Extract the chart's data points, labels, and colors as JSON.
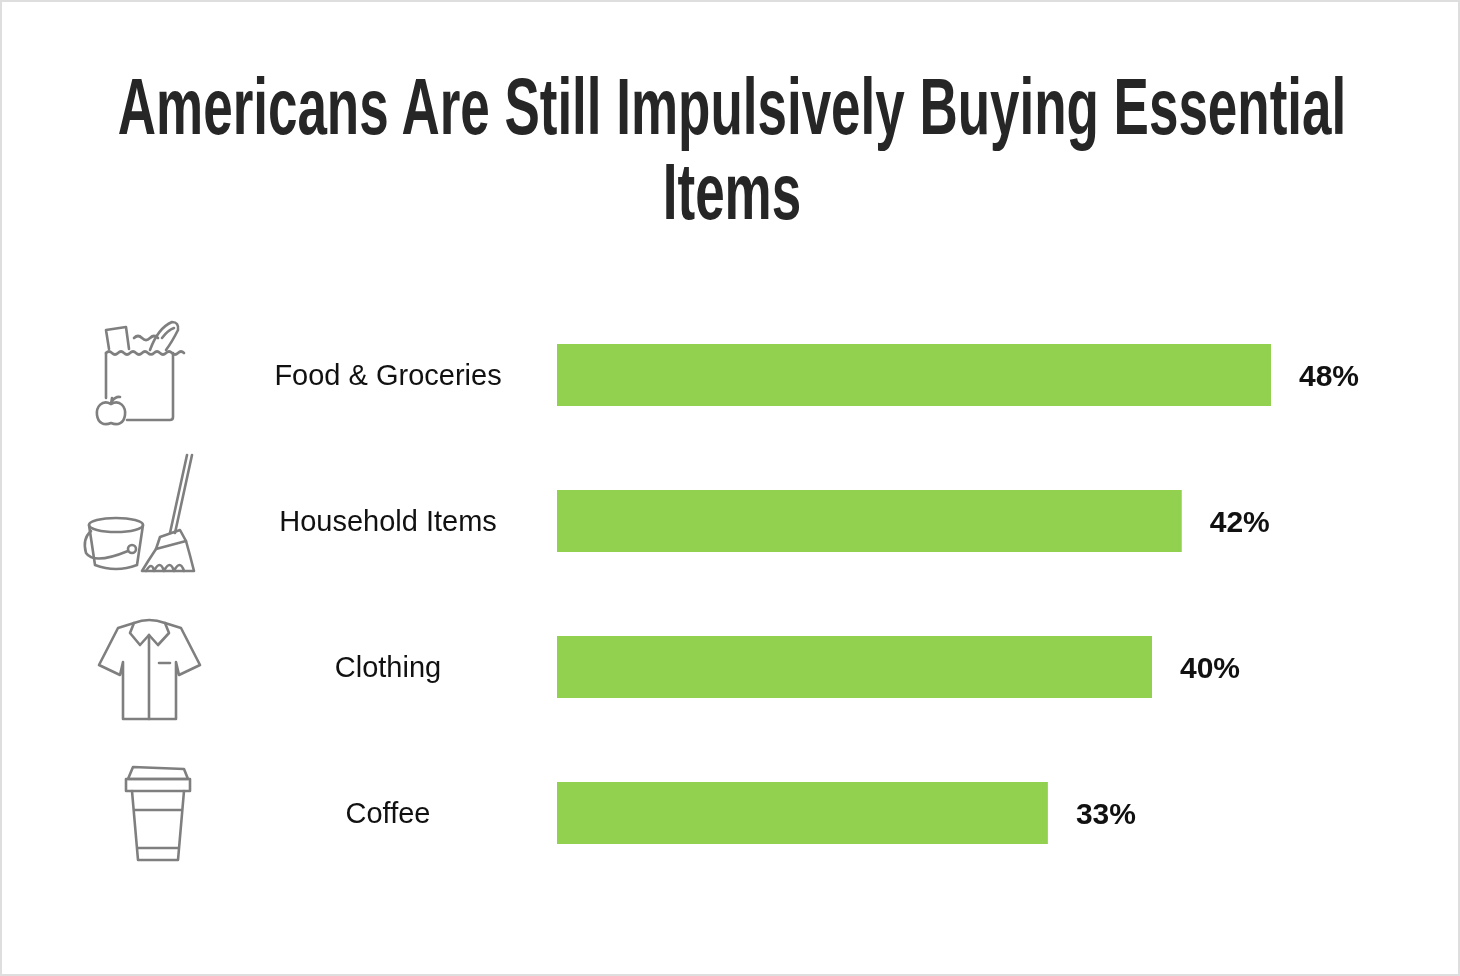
{
  "chart_data": {
    "type": "bar",
    "title": "Americans Are Still Impulsively Buying Essential Items",
    "categories": [
      "Food & Groceries",
      "Household Items",
      "Clothing",
      "Coffee"
    ],
    "values": [
      48,
      42,
      40,
      33
    ],
    "value_labels": [
      "48%",
      "42%",
      "40%",
      "33%"
    ],
    "color": "#92d050",
    "orientation": "horizontal",
    "tick_labels": "y"
  }
}
